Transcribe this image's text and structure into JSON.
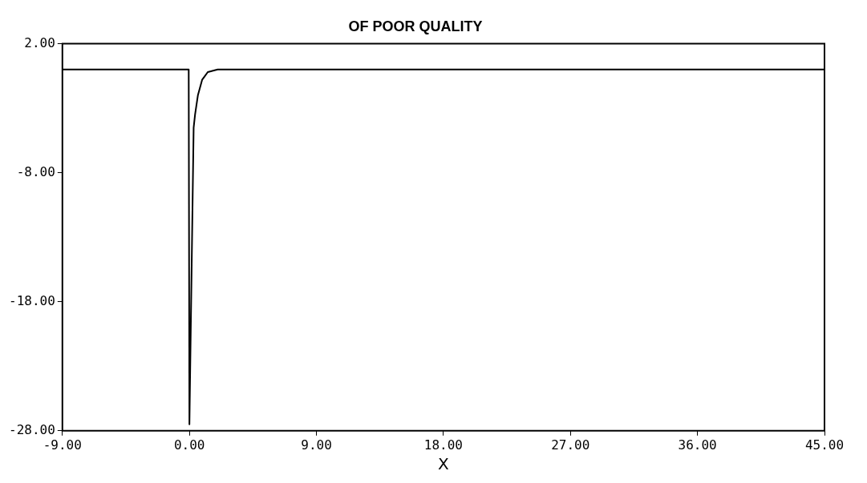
{
  "chart_data": {
    "type": "line",
    "title": "OF POOR QUALITY",
    "xlabel": "X",
    "series": [
      {
        "color": "#000000",
        "x": [
          -9,
          -0.05,
          0,
          0.3,
          0.4,
          0.6,
          0.9,
          1.3,
          2,
          45
        ],
        "values": [
          0,
          0,
          -27.5,
          -4.5,
          -3.5,
          -2,
          -0.8,
          -0.2,
          0,
          0
        ]
      }
    ],
    "xlim": [
      -9,
      45
    ],
    "xticks": [
      {
        "value": -9,
        "label": "-9.00"
      },
      {
        "value": 0,
        "label": "0.00"
      },
      {
        "value": 9,
        "label": "9.00"
      },
      {
        "value": 18,
        "label": "18.00"
      },
      {
        "value": 27,
        "label": "27.00"
      },
      {
        "value": 36,
        "label": "36.00"
      },
      {
        "value": 45,
        "label": "45.00"
      }
    ],
    "ylim": [
      -28,
      2
    ],
    "yticks": [
      {
        "value": 2,
        "label": "2.00"
      },
      {
        "value": -8,
        "label": "-8.00"
      },
      {
        "value": -18,
        "label": "-18.00"
      },
      {
        "value": -28,
        "label": "-28.00"
      }
    ],
    "grid": false,
    "legend": false,
    "marker": "none",
    "line_style": "solid"
  }
}
